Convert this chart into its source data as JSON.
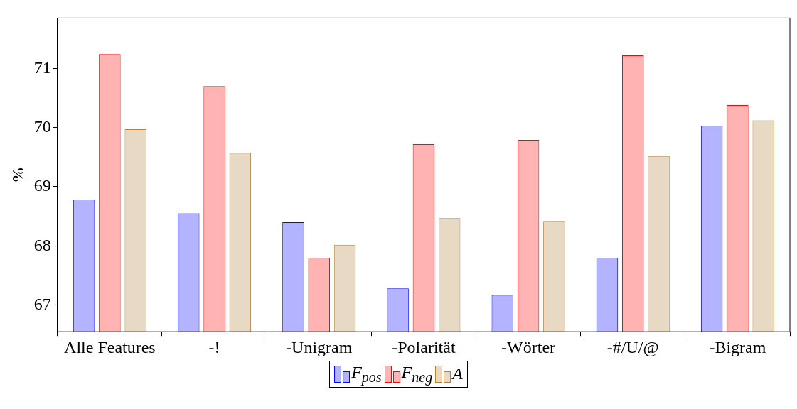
{
  "chart_data": {
    "type": "bar",
    "ylabel": "%",
    "categories": [
      "Alle Features",
      "-!",
      "-Unigram",
      "-Polarität",
      "-Wörter",
      "-#/U/@",
      "-Bigram"
    ],
    "series": [
      {
        "name": "F$_{pos}$",
        "color": "#b3b3ff",
        "values": [
          68.78,
          68.55,
          68.4,
          67.28,
          67.17,
          67.8,
          70.03
        ]
      },
      {
        "name": "F$_{neg}$",
        "color": "#ffb3b3",
        "values": [
          71.24,
          70.7,
          67.8,
          69.72,
          69.79,
          71.22,
          70.38
        ]
      },
      {
        "name": "A",
        "color": "#e8d9c4",
        "values": [
          69.97,
          69.57,
          68.02,
          68.47,
          68.42,
          69.52,
          70.12
        ]
      }
    ],
    "ylim": [
      66.55,
      71.85
    ],
    "yticks": [
      67,
      68,
      69,
      70,
      71
    ],
    "grid": false,
    "legend": "bottom"
  }
}
